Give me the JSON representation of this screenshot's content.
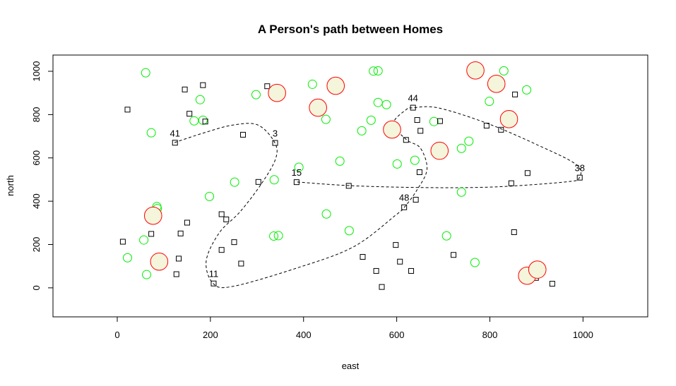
{
  "chart_data": {
    "type": "scatter",
    "title": "A Person's path between Homes",
    "xlabel": "east",
    "ylabel": "north",
    "xlim": [
      -138,
      1139
    ],
    "ylim": [
      -134,
      1075
    ],
    "xticks": [
      0,
      200,
      400,
      600,
      800,
      1000
    ],
    "yticks": [
      0,
      200,
      400,
      600,
      800,
      1000
    ],
    "grid": false,
    "colors": {
      "square": "#000000",
      "green_circle": "#00EE00",
      "red_circle_stroke": "#FF0000",
      "red_circle_fill": "#F5F5DC",
      "path": "#000000"
    },
    "squares": [
      [
        22,
        823
      ],
      [
        145,
        916
      ],
      [
        184,
        936
      ],
      [
        155,
        804
      ],
      [
        189,
        768
      ],
      [
        124,
        670
      ],
      [
        270,
        707
      ],
      [
        322,
        931
      ],
      [
        339,
        669
      ],
      [
        303,
        489
      ],
      [
        385,
        488
      ],
      [
        497,
        471
      ],
      [
        224,
        340
      ],
      [
        234,
        316
      ],
      [
        150,
        301
      ],
      [
        73,
        249
      ],
      [
        136,
        251
      ],
      [
        12,
        213
      ],
      [
        251,
        211
      ],
      [
        224,
        175
      ],
      [
        132,
        135
      ],
      [
        266,
        112
      ],
      [
        127,
        63
      ],
      [
        207,
        20
      ],
      [
        635,
        832
      ],
      [
        644,
        775
      ],
      [
        651,
        725
      ],
      [
        693,
        770
      ],
      [
        620,
        683
      ],
      [
        793,
        749
      ],
      [
        824,
        730
      ],
      [
        854,
        893
      ],
      [
        649,
        534
      ],
      [
        881,
        530
      ],
      [
        846,
        483
      ],
      [
        993,
        509
      ],
      [
        641,
        407
      ],
      [
        616,
        372
      ],
      [
        852,
        257
      ],
      [
        598,
        198
      ],
      [
        527,
        143
      ],
      [
        722,
        152
      ],
      [
        607,
        121
      ],
      [
        556,
        78
      ],
      [
        631,
        78
      ],
      [
        568,
        4
      ],
      [
        899,
        46
      ],
      [
        934,
        19
      ]
    ],
    "green_circles": [
      [
        61,
        993
      ],
      [
        178,
        869
      ],
      [
        165,
        771
      ],
      [
        184,
        774
      ],
      [
        73,
        716
      ],
      [
        298,
        892
      ],
      [
        419,
        940
      ],
      [
        448,
        778
      ],
      [
        478,
        585
      ],
      [
        390,
        557
      ],
      [
        337,
        499
      ],
      [
        252,
        488
      ],
      [
        198,
        422
      ],
      [
        85,
        375
      ],
      [
        86,
        366
      ],
      [
        449,
        341
      ],
      [
        336,
        239
      ],
      [
        346,
        241
      ],
      [
        498,
        264
      ],
      [
        57,
        221
      ],
      [
        22,
        139
      ],
      [
        63,
        61
      ],
      [
        550,
        1001
      ],
      [
        560,
        1002
      ],
      [
        560,
        856
      ],
      [
        578,
        846
      ],
      [
        545,
        774
      ],
      [
        525,
        725
      ],
      [
        680,
        768
      ],
      [
        739,
        644
      ],
      [
        755,
        677
      ],
      [
        601,
        572
      ],
      [
        639,
        589
      ],
      [
        739,
        442
      ],
      [
        830,
        1002
      ],
      [
        879,
        914
      ],
      [
        799,
        861
      ],
      [
        707,
        240
      ],
      [
        768,
        117
      ]
    ],
    "red_circles": [
      [
        343,
        900
      ],
      [
        469,
        933
      ],
      [
        431,
        832
      ],
      [
        77,
        333
      ],
      [
        90,
        121
      ],
      [
        769,
        1004
      ],
      [
        814,
        942
      ],
      [
        841,
        779
      ],
      [
        590,
        731
      ],
      [
        692,
        633
      ],
      [
        880,
        56
      ],
      [
        902,
        84
      ]
    ],
    "labeled_points": [
      {
        "label": "41",
        "x": 124,
        "y": 670
      },
      {
        "label": "3",
        "x": 339,
        "y": 669
      },
      {
        "label": "11",
        "x": 207,
        "y": 20
      },
      {
        "label": "48",
        "x": 616,
        "y": 372
      },
      {
        "label": "44",
        "x": 635,
        "y": 832
      },
      {
        "label": "38",
        "x": 993,
        "y": 509
      },
      {
        "label": "15",
        "x": 385,
        "y": 488
      }
    ],
    "path": [
      [
        123,
        671
      ],
      [
        188,
        717
      ],
      [
        249,
        752
      ],
      [
        302,
        752
      ],
      [
        338,
        671
      ],
      [
        340,
        596
      ],
      [
        310,
        482
      ],
      [
        264,
        352
      ],
      [
        219,
        254
      ],
      [
        191,
        124
      ],
      [
        206,
        20
      ],
      [
        249,
        7
      ],
      [
        385,
        91
      ],
      [
        507,
        189
      ],
      [
        598,
        336
      ],
      [
        616,
        371
      ],
      [
        643,
        450
      ],
      [
        665,
        547
      ],
      [
        651,
        645
      ],
      [
        621,
        684
      ],
      [
        593,
        759
      ],
      [
        621,
        824
      ],
      [
        634,
        831
      ],
      [
        689,
        831
      ],
      [
        795,
        759
      ],
      [
        901,
        661
      ],
      [
        985,
        570
      ],
      [
        992,
        508
      ],
      [
        962,
        489
      ],
      [
        810,
        466
      ],
      [
        659,
        463
      ],
      [
        499,
        472
      ],
      [
        385,
        489
      ]
    ]
  }
}
